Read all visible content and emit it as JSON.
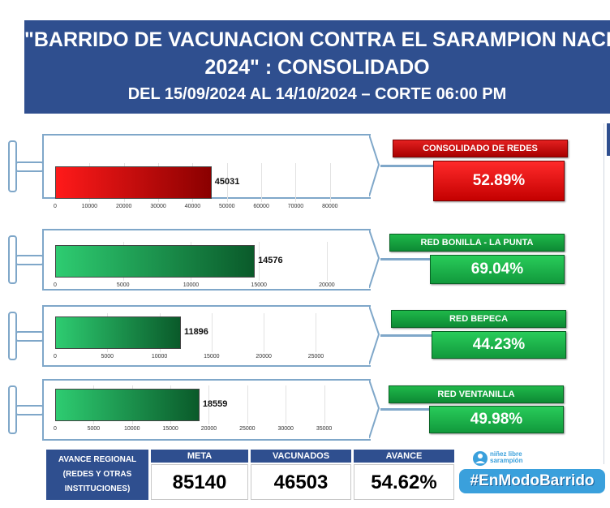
{
  "header": {
    "title_line1": "\"BARRIDO DE VACUNACION CONTRA EL SARAMPION NACIONAL",
    "title_line2": "2024\" : CONSOLIDADO",
    "subtitle": "DEL 15/09/2024 AL 14/10/2024 – CORTE 06:00 PM"
  },
  "colors": {
    "header_blue": "#2f4f8f",
    "red": "#e32020",
    "green": "#1fb84a",
    "syringe_outline": "#7fa7c9"
  },
  "charts": [
    {
      "id": "consolidado",
      "color": "red",
      "value": 45031,
      "value_label": "45031",
      "max": 85000,
      "ticks": [
        "0",
        "10000",
        "20000",
        "30000",
        "40000",
        "50000",
        "60000",
        "70000",
        "80000"
      ],
      "tick_values": [
        0,
        10000,
        20000,
        30000,
        40000,
        50000,
        60000,
        70000,
        80000
      ],
      "card_title": "CONSOLIDADO DE REDES",
      "card_pct": "52.89%"
    },
    {
      "id": "bonilla",
      "color": "green",
      "value": 14576,
      "value_label": "14576",
      "max": 21500,
      "ticks": [
        "0",
        "5000",
        "10000",
        "15000",
        "20000"
      ],
      "tick_values": [
        0,
        5000,
        10000,
        15000,
        20000
      ],
      "card_title": "RED BONILLA - LA PUNTA",
      "card_pct": "69.04%"
    },
    {
      "id": "bepeca",
      "color": "green",
      "value": 11896,
      "value_label": "11896",
      "max": 28000,
      "ticks": [
        "0",
        "5000",
        "10000",
        "15000",
        "20000",
        "25000"
      ],
      "tick_values": [
        0,
        5000,
        10000,
        15000,
        20000,
        25000
      ],
      "card_title": "RED BEPECA",
      "card_pct": "44.23%"
    },
    {
      "id": "ventanilla",
      "color": "green",
      "value": 18559,
      "value_label": "18559",
      "max": 38000,
      "ticks": [
        "0",
        "5000",
        "10000",
        "15000",
        "20000",
        "25000",
        "30000",
        "35000"
      ],
      "tick_values": [
        0,
        5000,
        10000,
        15000,
        20000,
        25000,
        30000,
        35000
      ],
      "card_title": "RED VENTANILLA",
      "card_pct": "49.98%"
    }
  ],
  "summary": {
    "label_line1": "AVANCE REGIONAL",
    "label_line2": "(REDES Y OTRAS",
    "label_line3": "INSTITUCIONES)",
    "meta_header": "META",
    "meta_value": "85140",
    "vacunados_header": "VACUNADOS",
    "vacunados_value": "46503",
    "avance_header": "AVANCE",
    "avance_value": "54.62%"
  },
  "footer": {
    "logo_text_1": "niñez libre",
    "logo_text_2": "sarampión",
    "hashtag": "#EnModoBarrido"
  }
}
